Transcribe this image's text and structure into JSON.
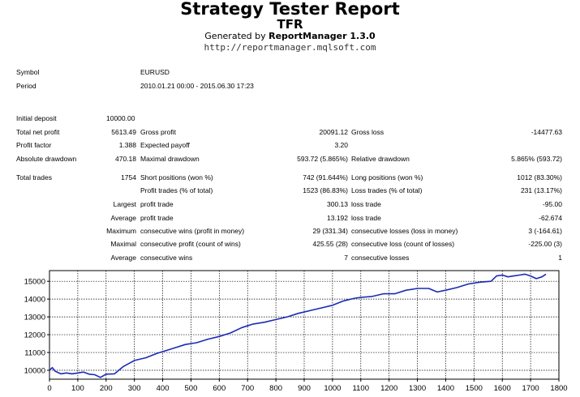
{
  "header": {
    "title": "Strategy Tester Report",
    "subtitle": "TFR",
    "generated_prefix": "Generated by ",
    "generated_tool": "ReportManager 1.3.0",
    "url": "http://reportmanager.mqlsoft.com"
  },
  "info": {
    "symbol_label": "Symbol",
    "symbol_value": "EURUSD",
    "period_label": "Period",
    "period_value": "2010.01.21 00:00 - 2015.06.30 17:23"
  },
  "stats": {
    "initial_deposit_label": "Initial deposit",
    "initial_deposit_value": "10000.00",
    "total_net_profit_label": "Total net profit",
    "total_net_profit_value": "5613.49",
    "gross_profit_label": "Gross profit",
    "gross_profit_value": "20091.12",
    "gross_loss_label": "Gross loss",
    "gross_loss_value": "-14477.63",
    "profit_factor_label": "Profit factor",
    "profit_factor_value": "1.388",
    "expected_payoff_label": "Expected payoff",
    "expected_payoff_value": "3.20",
    "absolute_drawdown_label": "Absolute drawdown",
    "absolute_drawdown_value": "470.18",
    "maximal_drawdown_label": "Maximal drawdown",
    "maximal_drawdown_value": "593.72 (5.865%)",
    "relative_drawdown_label": "Relative drawdown",
    "relative_drawdown_value": "5.865% (593.72)",
    "total_trades_label": "Total trades",
    "total_trades_value": "1754",
    "short_positions_label": "Short positions (won %)",
    "short_positions_value": "742 (91.644%)",
    "long_positions_label": "Long positions (won %)",
    "long_positions_value": "1012 (83.30%)",
    "profit_trades_label": "Profit trades (% of total)",
    "profit_trades_value": "1523 (86.83%)",
    "loss_trades_label": "Loss trades (% of total)",
    "loss_trades_value": "231 (13.17%)",
    "largest_label": "Largest",
    "largest_profit_label": "profit trade",
    "largest_profit_value": "300.13",
    "largest_loss_label": "loss trade",
    "largest_loss_value": "-95.00",
    "average_label": "Average",
    "average_profit_label": "profit trade",
    "average_profit_value": "13.192",
    "average_loss_label": "loss trade",
    "average_loss_value": "-62.674",
    "maximum_label": "Maximum",
    "max_consec_wins_label": "consecutive wins (profit in money)",
    "max_consec_wins_value": "29 (331.34)",
    "max_consec_losses_label": "consecutive losses (loss in money)",
    "max_consec_losses_value": "3 (-164.61)",
    "maximal_label": "Maximal",
    "maximal_consec_profit_label": "consecutive profit (count of wins)",
    "maximal_consec_profit_value": "425.55 (28)",
    "maximal_consec_loss_label": "consecutive loss (count of losses)",
    "maximal_consec_loss_value": "-225.00 (3)",
    "avg_consec_label": "Average",
    "avg_consec_wins_label": "consecutive wins",
    "avg_consec_wins_value": "7",
    "avg_consec_losses_label": "consecutive losses",
    "avg_consec_losses_value": "1"
  },
  "chart_data": {
    "type": "line",
    "title": "",
    "xlabel": "",
    "ylabel": "",
    "xlim": [
      0,
      1800
    ],
    "ylim": [
      9500,
      15600
    ],
    "x_ticks": [
      0,
      100,
      200,
      300,
      400,
      500,
      600,
      700,
      800,
      900,
      1000,
      1100,
      1200,
      1300,
      1400,
      1500,
      1600,
      1700,
      1800
    ],
    "x_tick_labels": [
      "0",
      "100",
      "200",
      "300",
      "400",
      "500",
      "600",
      "700",
      "800",
      "900",
      "1000",
      "1100",
      "1200",
      "1300",
      "1400",
      "1500",
      "1600",
      "1700",
      "1800"
    ],
    "y_ticks": [
      10000,
      11000,
      12000,
      13000,
      14000,
      15000
    ],
    "y_tick_labels": [
      "10000",
      "11000",
      "12000",
      "13000",
      "14000",
      "15000"
    ],
    "grid": true,
    "series_color": "#1a2bb5",
    "x": [
      0,
      10,
      20,
      40,
      60,
      80,
      100,
      120,
      140,
      160,
      180,
      200,
      230,
      260,
      300,
      340,
      380,
      400,
      440,
      480,
      520,
      560,
      600,
      640,
      680,
      720,
      760,
      800,
      840,
      880,
      920,
      960,
      1000,
      1040,
      1080,
      1100,
      1140,
      1180,
      1220,
      1260,
      1300,
      1340,
      1370,
      1400,
      1440,
      1480,
      1520,
      1560,
      1580,
      1600,
      1620,
      1640,
      1660,
      1680,
      1700,
      1720,
      1740,
      1754
    ],
    "y": [
      10000,
      10150,
      9950,
      9800,
      9850,
      9800,
      9850,
      9900,
      9780,
      9750,
      9600,
      9780,
      9800,
      10200,
      10550,
      10700,
      10950,
      11050,
      11250,
      11450,
      11550,
      11750,
      11900,
      12100,
      12400,
      12600,
      12700,
      12850,
      13000,
      13200,
      13350,
      13500,
      13650,
      13900,
      14050,
      14100,
      14150,
      14300,
      14300,
      14500,
      14600,
      14600,
      14400,
      14500,
      14650,
      14850,
      14950,
      15000,
      15300,
      15350,
      15250,
      15300,
      15350,
      15400,
      15300,
      15150,
      15250,
      15400
    ]
  }
}
